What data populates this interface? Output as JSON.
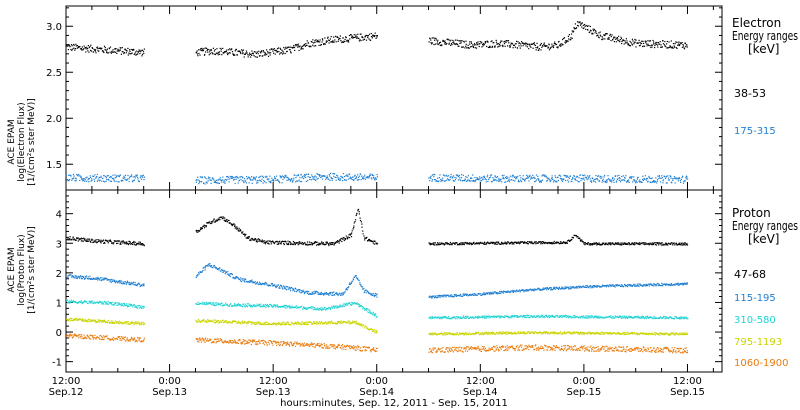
{
  "chart_data": [
    {
      "type": "scatter",
      "panel": "electron",
      "ylabel_lines": [
        "ACE EPAM",
        "log(Electron Flux)",
        "[1/(cm²s ster MeV)]"
      ],
      "legend_title_lines": [
        "Electron",
        "Energy ranges",
        "[keV]"
      ],
      "ylim": [
        1.22,
        3.22
      ],
      "yticks": [
        1.5,
        2.0,
        2.5,
        3.0
      ],
      "ytick_labels": [
        "1.5",
        "2.0",
        "2.5",
        "3.0"
      ],
      "grid": false,
      "legend_position": "right",
      "series": [
        {
          "name": "38-53",
          "color": "#000000",
          "segments": [
            {
              "start_h": 0,
              "end_h": 9,
              "points": [
                [
                  0,
                  2.78
                ],
                [
                  9,
                  2.72
                ]
              ],
              "noise": 0.04
            },
            {
              "start_h": 15,
              "end_h": 36,
              "points": [
                [
                  15,
                  2.72
                ],
                [
                  17,
                  2.74
                ],
                [
                  22,
                  2.7
                ],
                [
                  26,
                  2.75
                ],
                [
                  28,
                  2.82
                ],
                [
                  31,
                  2.86
                ],
                [
                  36,
                  2.9
                ]
              ],
              "noise": 0.04
            },
            {
              "start_h": 42,
              "end_h": 60,
              "points": [
                [
                  42,
                  2.85
                ],
                [
                  47,
                  2.8
                ],
                [
                  50,
                  2.82
                ],
                [
                  55,
                  2.78
                ],
                [
                  57,
                  2.8
                ],
                [
                  58.5,
                  2.9
                ],
                [
                  59.2,
                  3.04
                ],
                [
                  62,
                  2.9
                ],
                [
                  66,
                  2.82
                ],
                [
                  72,
                  2.8
                ]
              ],
              "noise": 0.04,
              "note_end_h": 72
            }
          ]
        },
        {
          "name": "175-315",
          "color": "#1f7fd1",
          "segments": [
            {
              "start_h": 0,
              "end_h": 9,
              "points": [
                [
                  0,
                  1.36
                ],
                [
                  9,
                  1.35
                ]
              ],
              "noise": 0.04
            },
            {
              "start_h": 15,
              "end_h": 36,
              "points": [
                [
                  15,
                  1.33
                ],
                [
                  24,
                  1.34
                ],
                [
                  30,
                  1.37
                ],
                [
                  36,
                  1.36
                ]
              ],
              "noise": 0.04
            },
            {
              "start_h": 42,
              "end_h": 72,
              "points": [
                [
                  42,
                  1.36
                ],
                [
                  50,
                  1.35
                ],
                [
                  60,
                  1.35
                ],
                [
                  72,
                  1.34
                ]
              ],
              "noise": 0.04
            }
          ]
        }
      ]
    },
    {
      "type": "scatter",
      "panel": "proton",
      "ylabel_lines": [
        "ACE EPAM",
        "log(Proton Flux)",
        "[1/(cm²s ster MeV)]"
      ],
      "legend_title_lines": [
        "Proton",
        "Energy ranges",
        "[keV]"
      ],
      "ylim": [
        -1.35,
        4.8
      ],
      "yticks": [
        -1,
        0,
        1,
        2,
        3,
        4
      ],
      "ytick_labels": [
        "-1",
        "0",
        "1",
        "2",
        "3",
        "4"
      ],
      "grid": false,
      "legend_position": "right",
      "series": [
        {
          "name": "47-68",
          "color": "#000000",
          "segments": [
            {
              "start_h": 0,
              "end_h": 9,
              "points": [
                [
                  0,
                  3.2
                ],
                [
                  3,
                  3.1
                ],
                [
                  9,
                  3.0
                ]
              ],
              "noise": 0.06
            },
            {
              "start_h": 15,
              "end_h": 36,
              "points": [
                [
                  15,
                  3.4
                ],
                [
                  16.5,
                  3.7
                ],
                [
                  18,
                  3.9
                ],
                [
                  19.5,
                  3.6
                ],
                [
                  21,
                  3.2
                ],
                [
                  23,
                  3.05
                ],
                [
                  31,
                  3.0
                ],
                [
                  33,
                  3.3
                ],
                [
                  33.8,
                  4.2
                ],
                [
                  34.5,
                  3.2
                ],
                [
                  36,
                  3.0
                ]
              ],
              "noise": 0.06
            },
            {
              "start_h": 42,
              "end_h": 72,
              "points": [
                [
                  42,
                  3.0
                ],
                [
                  58,
                  3.05
                ],
                [
                  59,
                  3.3
                ],
                [
                  60,
                  3.0
                ],
                [
                  72,
                  3.0
                ]
              ],
              "noise": 0.04
            }
          ]
        },
        {
          "name": "115-195",
          "color": "#1f7fd1",
          "segments": [
            {
              "start_h": 0,
              "end_h": 9,
              "points": [
                [
                  0,
                  1.9
                ],
                [
                  3,
                  1.85
                ],
                [
                  9,
                  1.6
                ]
              ],
              "noise": 0.06
            },
            {
              "start_h": 15,
              "end_h": 36,
              "points": [
                [
                  15,
                  1.9
                ],
                [
                  16.5,
                  2.3
                ],
                [
                  18,
                  2.1
                ],
                [
                  20,
                  1.8
                ],
                [
                  24,
                  1.6
                ],
                [
                  28,
                  1.35
                ],
                [
                  32,
                  1.3
                ],
                [
                  33.5,
                  1.9
                ],
                [
                  34.5,
                  1.4
                ],
                [
                  36,
                  1.25
                ]
              ],
              "noise": 0.06
            },
            {
              "start_h": 42,
              "end_h": 72,
              "points": [
                [
                  42,
                  1.2
                ],
                [
                  48,
                  1.3
                ],
                [
                  54,
                  1.45
                ],
                [
                  60,
                  1.55
                ],
                [
                  66,
                  1.6
                ],
                [
                  72,
                  1.65
                ]
              ],
              "noise": 0.04
            }
          ]
        },
        {
          "name": "310-580",
          "color": "#1fd3d3",
          "segments": [
            {
              "start_h": 0,
              "end_h": 9,
              "points": [
                [
                  0,
                  1.05
                ],
                [
                  5,
                  1.0
                ],
                [
                  9,
                  0.85
                ]
              ],
              "noise": 0.05
            },
            {
              "start_h": 15,
              "end_h": 36,
              "points": [
                [
                  15,
                  1.0
                ],
                [
                  18,
                  0.95
                ],
                [
                  24,
                  0.9
                ],
                [
                  30,
                  0.8
                ],
                [
                  33.5,
                  1.0
                ],
                [
                  36,
                  0.55
                ]
              ],
              "noise": 0.05
            },
            {
              "start_h": 42,
              "end_h": 72,
              "points": [
                [
                  42,
                  0.5
                ],
                [
                  54,
                  0.55
                ],
                [
                  72,
                  0.5
                ]
              ],
              "noise": 0.04
            }
          ]
        },
        {
          "name": "795-1193",
          "color": "#c8d400",
          "segments": [
            {
              "start_h": 0,
              "end_h": 9,
              "points": [
                [
                  0,
                  0.45
                ],
                [
                  9,
                  0.3
                ]
              ],
              "noise": 0.05
            },
            {
              "start_h": 15,
              "end_h": 36,
              "points": [
                [
                  15,
                  0.4
                ],
                [
                  24,
                  0.3
                ],
                [
                  33.5,
                  0.35
                ],
                [
                  36,
                  0.0
                ]
              ],
              "noise": 0.05
            },
            {
              "start_h": 42,
              "end_h": 72,
              "points": [
                [
                  42,
                  -0.05
                ],
                [
                  54,
                  0.0
                ],
                [
                  72,
                  -0.05
                ]
              ],
              "noise": 0.04
            }
          ]
        },
        {
          "name": "1060-1900",
          "color": "#ea7c10",
          "segments": [
            {
              "start_h": 0,
              "end_h": 9,
              "points": [
                [
                  0,
                  -0.1
                ],
                [
                  9,
                  -0.25
                ]
              ],
              "noise": 0.07
            },
            {
              "start_h": 15,
              "end_h": 36,
              "points": [
                [
                  15,
                  -0.25
                ],
                [
                  24,
                  -0.35
                ],
                [
                  33,
                  -0.5
                ],
                [
                  36,
                  -0.6
                ]
              ],
              "noise": 0.08
            },
            {
              "start_h": 42,
              "end_h": 72,
              "points": [
                [
                  42,
                  -0.6
                ],
                [
                  54,
                  -0.5
                ],
                [
                  72,
                  -0.6
                ]
              ],
              "noise": 0.09
            }
          ]
        }
      ]
    }
  ],
  "x_axis": {
    "range_h": [
      0,
      76
    ],
    "ticks": [
      {
        "h": 0,
        "top": "12:00",
        "bottom": "Sep.12"
      },
      {
        "h": 12,
        "top": "0:00",
        "bottom": "Sep.13"
      },
      {
        "h": 24,
        "top": "12:00",
        "bottom": "Sep.13"
      },
      {
        "h": 36,
        "top": "0:00",
        "bottom": "Sep.14"
      },
      {
        "h": 48,
        "top": "12:00",
        "bottom": "Sep.14"
      },
      {
        "h": 60,
        "top": "0:00",
        "bottom": "Sep.15"
      },
      {
        "h": 72,
        "top": "12:00",
        "bottom": "Sep.15"
      }
    ],
    "xlabel": "hours:minutes, Sep. 12, 2011 - Sep. 15, 2011"
  }
}
